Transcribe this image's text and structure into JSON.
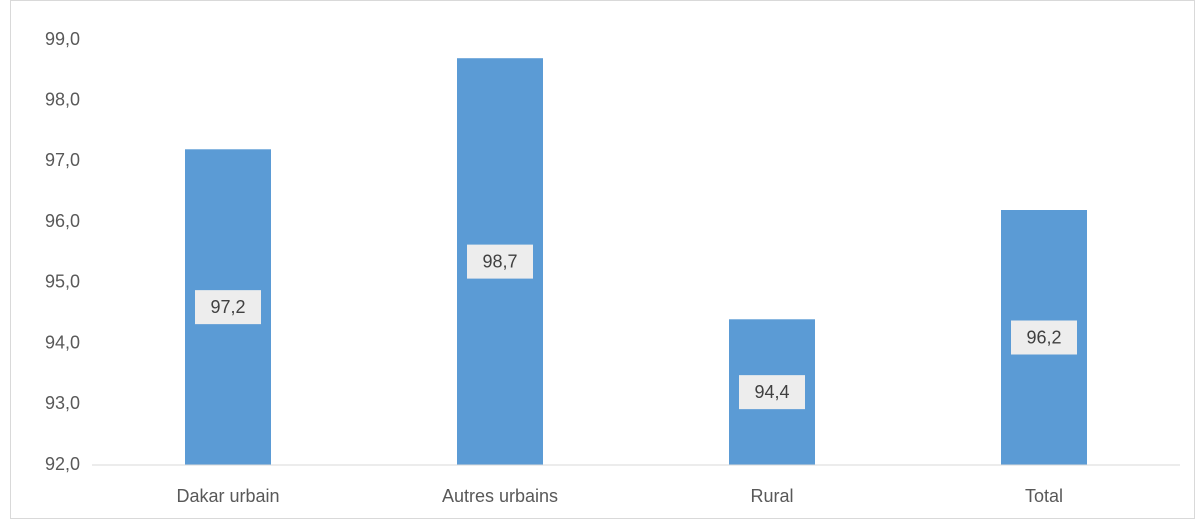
{
  "chart_data": {
    "type": "bar",
    "categories": [
      "Dakar urbain",
      "Autres urbains",
      "Rural",
      "Total"
    ],
    "values": [
      97.2,
      98.7,
      94.4,
      96.2
    ],
    "value_labels": [
      "97,2",
      "98,7",
      "94,4",
      "96,2"
    ],
    "color": "#5b9bd5",
    "ylim": [
      92,
      99
    ],
    "yticks": [
      {
        "value": 92,
        "label": "92,0"
      },
      {
        "value": 93,
        "label": "93,0"
      },
      {
        "value": 94,
        "label": "94,0"
      },
      {
        "value": 95,
        "label": "95,0"
      },
      {
        "value": 96,
        "label": "96,0"
      },
      {
        "value": 97,
        "label": "97,0"
      },
      {
        "value": 98,
        "label": "98,0"
      },
      {
        "value": 99,
        "label": "99,0"
      }
    ],
    "grid": false
  }
}
